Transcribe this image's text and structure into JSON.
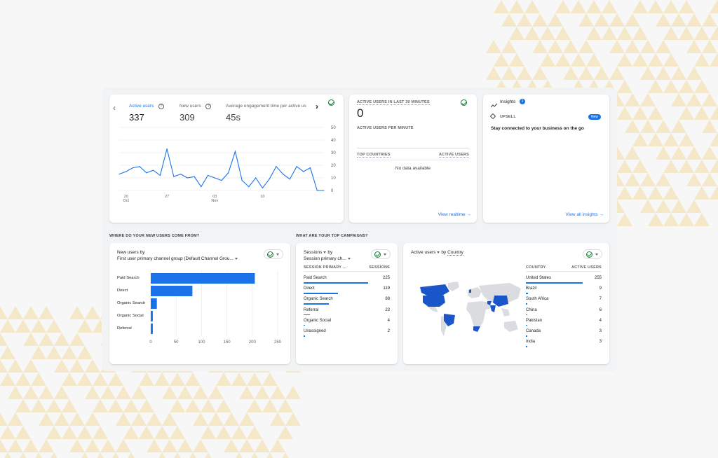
{
  "overview": {
    "metrics": [
      {
        "label": "Active users",
        "value": "337"
      },
      {
        "label": "New users",
        "value": "309"
      },
      {
        "label": "Average engagement time per active us",
        "value": "45s"
      }
    ],
    "y_ticks": [
      "50",
      "40",
      "30",
      "20",
      "10",
      "0"
    ],
    "x_ticks": [
      {
        "day": "20",
        "month": "Oct"
      },
      {
        "day": "27",
        "month": ""
      },
      {
        "day": "03",
        "month": "Nov"
      },
      {
        "day": "10",
        "month": ""
      }
    ]
  },
  "chart_data": {
    "type": "line",
    "title": "",
    "xlabel": "",
    "ylabel": "",
    "ylim": [
      0,
      50
    ],
    "series": [
      {
        "name": "Active users",
        "values": [
          13,
          15,
          18,
          19,
          14,
          16,
          12,
          33,
          11,
          13,
          10,
          11,
          3,
          12,
          10,
          8,
          14,
          31,
          8,
          3,
          10,
          2,
          9,
          19,
          13,
          9,
          19,
          15,
          18,
          0,
          0
        ]
      }
    ]
  },
  "realtime": {
    "heading": "ACTIVE USERS IN LAST 30 MINUTES",
    "value": "0",
    "per_minute": "ACTIVE USERS PER MINUTE",
    "col_country": "TOP COUNTRIES",
    "col_users": "ACTIVE USERS",
    "empty": "No data available",
    "link": "View realtime"
  },
  "insights": {
    "title": "Insights",
    "badge": "1",
    "upsell": "UPSELL",
    "new_badge": "New",
    "message": "Stay connected to your business on the go",
    "link": "View all insights"
  },
  "section_titles": {
    "new_users": "WHERE DO YOUR NEW USERS COME FROM?",
    "campaigns": "WHAT ARE YOUR TOP CAMPAIGNS?"
  },
  "new_users": {
    "title": "New users by",
    "subtitle": "First user primary channel group (Default Channel Grou...",
    "x_ticks": [
      "0",
      "50",
      "100",
      "150",
      "200",
      "250"
    ],
    "bars": [
      {
        "label": "Paid Search",
        "value": 205
      },
      {
        "label": "Direct",
        "value": 82
      },
      {
        "label": "Organic Search",
        "value": 12
      },
      {
        "label": "Organic Social",
        "value": 4
      },
      {
        "label": "Referral",
        "value": 4
      }
    ]
  },
  "sessions": {
    "title": "Sessions",
    "title_suffix": "by",
    "subtitle": "Session primary ch...",
    "col_left": "SESSION PRIMARY ...",
    "col_right": "SESSIONS",
    "rows": [
      {
        "label": "Paid Search",
        "value": "225",
        "frac": 1.0
      },
      {
        "label": "Direct",
        "value": "119",
        "frac": 0.53
      },
      {
        "label": "Organic Search",
        "value": "88",
        "frac": 0.39
      },
      {
        "label": "Referral",
        "value": "23",
        "frac": 0.1
      },
      {
        "label": "Organic Social",
        "value": "4",
        "frac": 0.02
      },
      {
        "label": "Unassigned",
        "value": "2",
        "frac": 0.01
      }
    ]
  },
  "countries": {
    "title": "Active users",
    "title_by": "by",
    "title_dim": "Country",
    "col_left": "COUNTRY",
    "col_right": "ACTIVE USERS",
    "rows": [
      {
        "label": "United States",
        "value": "255",
        "frac": 1.0
      },
      {
        "label": "Brazil",
        "value": "9",
        "frac": 0.04
      },
      {
        "label": "South Africa",
        "value": "7",
        "frac": 0.03
      },
      {
        "label": "China",
        "value": "6",
        "frac": 0.02
      },
      {
        "label": "Pakistan",
        "value": "4",
        "frac": 0.02
      },
      {
        "label": "Canada",
        "value": "3",
        "frac": 0.01
      },
      {
        "label": "India",
        "value": "3",
        "frac": 0.01
      }
    ]
  },
  "colors": {
    "accent": "#1a73e8",
    "map_dark": "#1a56c9",
    "map_light": "#dadce0",
    "bg_triangle": "#f3dca0"
  }
}
